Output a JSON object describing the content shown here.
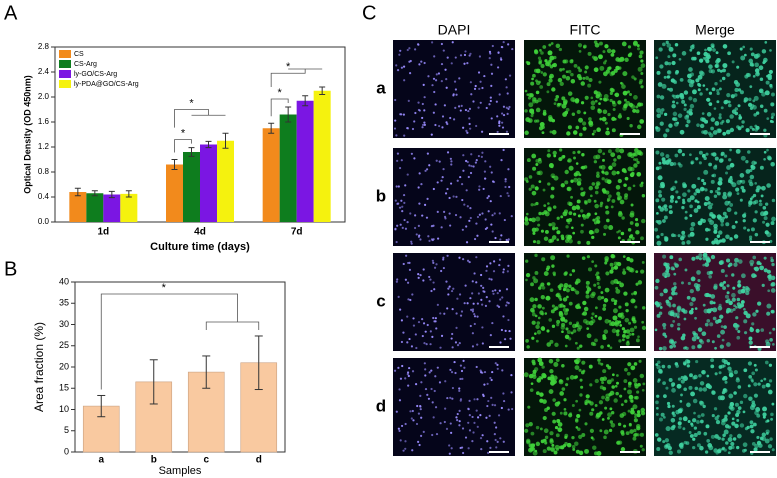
{
  "panel_labels": [
    "A",
    "B",
    "C"
  ],
  "chart_data": [
    {
      "type": "bar",
      "x_label": "Culture time (days)",
      "y_label": "Optical Density (OD 450nm)",
      "categories": [
        "1d",
        "4d",
        "7d"
      ],
      "series": [
        {
          "name": "CS",
          "color": "#f28a1c",
          "values": [
            0.48,
            0.92,
            1.5
          ],
          "errors": [
            0.06,
            0.08,
            0.08
          ]
        },
        {
          "name": "CS-Arg",
          "color": "#0e7d1e",
          "values": [
            0.46,
            1.12,
            1.72
          ],
          "errors": [
            0.04,
            0.07,
            0.12
          ]
        },
        {
          "name": "ly-GO/CS-Arg",
          "color": "#7b16e3",
          "values": [
            0.44,
            1.24,
            1.94
          ],
          "errors": [
            0.05,
            0.05,
            0.08
          ]
        },
        {
          "name": "ly-PDA@GO/CS-Arg",
          "color": "#f5f20e",
          "values": [
            0.45,
            1.3,
            2.1
          ],
          "errors": [
            0.05,
            0.12,
            0.06
          ]
        }
      ],
      "ylim": [
        0,
        2.8
      ],
      "yticks": [
        {
          "value": 0,
          "label": "0.0"
        },
        0.4,
        0.8,
        1.2,
        1.6,
        {
          "value": 2,
          "label": "2.0"
        },
        2.4,
        2.8
      ],
      "legend": "upper left",
      "annotations": [
        "*",
        "*",
        "*",
        "*"
      ]
    },
    {
      "type": "bar",
      "x_label": "Samples",
      "y_label": "Area fraction (%)",
      "categories": [
        "a",
        "b",
        "c",
        "d"
      ],
      "color": "#f9c9a0",
      "values": [
        10.8,
        16.5,
        18.8,
        21.0
      ],
      "errors": [
        2.5,
        5.2,
        3.8,
        6.3
      ],
      "ylim": [
        0,
        40
      ],
      "yticks": [
        0,
        5,
        10,
        15,
        20,
        25,
        30,
        35,
        40
      ],
      "annotations": [
        "*"
      ]
    }
  ],
  "micrographs": {
    "columns": [
      "DAPI",
      "FITC",
      "Merge"
    ],
    "rows": [
      "a",
      "b",
      "c",
      "d"
    ]
  }
}
